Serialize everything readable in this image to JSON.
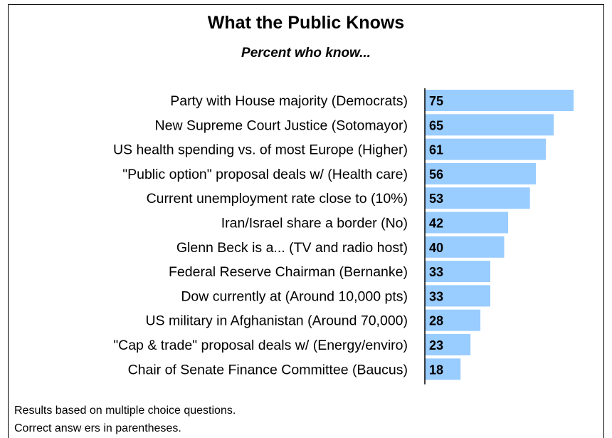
{
  "title": "What the Public Knows",
  "subtitle": "Percent who know...",
  "footnotes": [
    "Results based on multiple choice questions.",
    "Correct answ ers in parentheses."
  ],
  "colors": {
    "bar": "#99ccff",
    "axis": "#000000"
  },
  "chart_data": {
    "type": "bar",
    "orientation": "horizontal",
    "title": "What the Public Knows",
    "subtitle": "Percent who know...",
    "categories": [
      "Party with House majority (Democrats)",
      "New Supreme Court Justice (Sotomayor)",
      "US health spending vs. of most Europe (Higher)",
      "\"Public option\" proposal deals w/ (Health care)",
      "Current unemployment rate close to (10%)",
      "Iran/Israel share a border (No)",
      "Glenn Beck is a... (TV and radio host)",
      "Federal Reserve Chairman (Bernanke)",
      "Dow currently at (Around 10,000 pts)",
      "US military in Afghanistan (Around 70,000)",
      "\"Cap & trade\" proposal deals w/ (Energy/enviro)",
      "Chair of Senate Finance Committee (Baucus)"
    ],
    "values": [
      75,
      65,
      61,
      56,
      53,
      42,
      40,
      33,
      33,
      28,
      23,
      18
    ],
    "data_labels": [
      "75",
      "65",
      "61",
      "56",
      "53",
      "42",
      "40",
      "33",
      "33",
      "28",
      "23",
      "18"
    ],
    "xlim": [
      0,
      75
    ],
    "grid": false,
    "legend": "none"
  }
}
